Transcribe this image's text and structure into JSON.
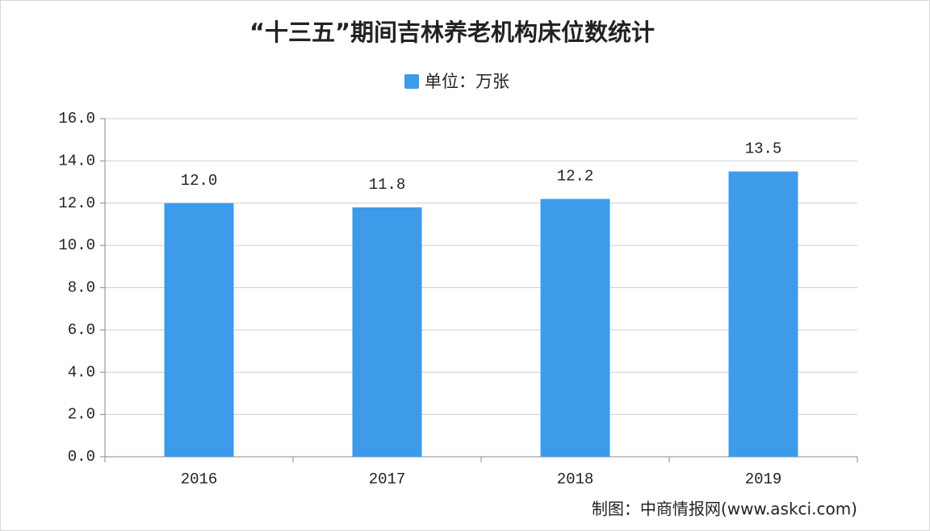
{
  "chart_data": {
    "type": "bar",
    "title": "“十三五”期间吉林养老机构床位数统计",
    "categories": [
      "2016",
      "2017",
      "2018",
      "2019"
    ],
    "series": [
      {
        "name": "单位：万张",
        "color": "#3d9be9",
        "values": [
          12.0,
          11.8,
          12.2,
          13.5
        ],
        "value_labels": [
          "12.0",
          "11.8",
          "12.2",
          "13.5"
        ]
      }
    ],
    "ylim": [
      0,
      16
    ],
    "yticks": [
      {
        "value": 0,
        "label": "0.0"
      },
      {
        "value": 2,
        "label": "2.0"
      },
      {
        "value": 4,
        "label": "4.0"
      },
      {
        "value": 6,
        "label": "6.0"
      },
      {
        "value": 8,
        "label": "8.0"
      },
      {
        "value": 10,
        "label": "10.0"
      },
      {
        "value": 12,
        "label": "12.0"
      },
      {
        "value": 14,
        "label": "14.0"
      },
      {
        "value": 16,
        "label": "16.0"
      }
    ],
    "grid": true,
    "source": "制图：中商情报网(www.askci.com)"
  }
}
